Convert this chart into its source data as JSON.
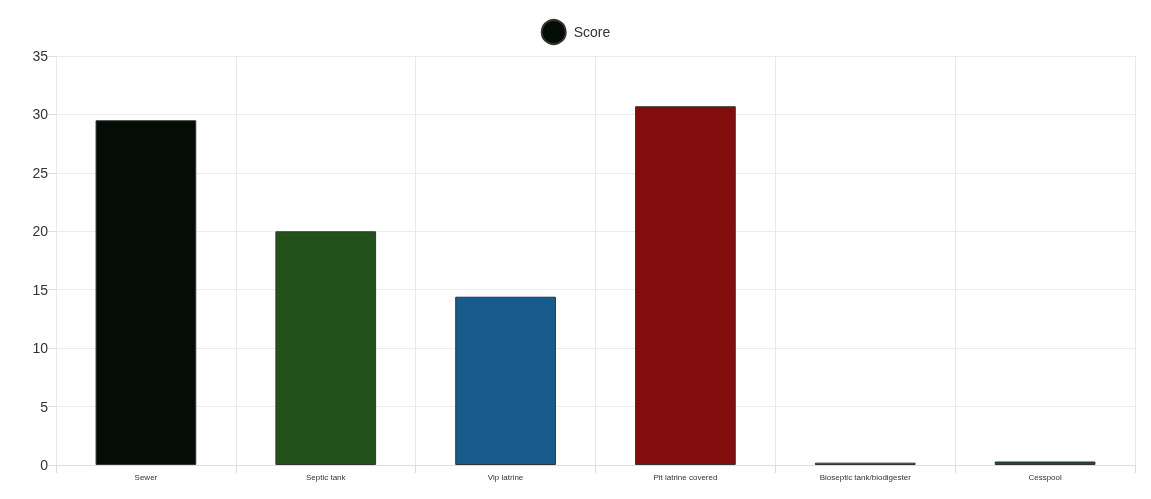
{
  "chart_data": {
    "type": "bar",
    "categories": [
      "Sewer",
      "Septic tank",
      "Vip latrine",
      "Pit latrine covered",
      "Bioseptic tank/biodigester",
      "Cesspool"
    ],
    "series": [
      {
        "name": "Score",
        "color": "#030d05",
        "colors": [
          "#030d05",
          "#225119",
          "#185c8c",
          "#830d0d",
          "#666666",
          "#1d4a37"
        ],
        "values": [
          29.5,
          20,
          14.4,
          30.7,
          0.2,
          0.3
        ]
      }
    ],
    "ylim": [
      0,
      35
    ],
    "yticks": [
      0,
      5,
      10,
      15,
      20,
      25,
      30,
      35
    ],
    "grid": true,
    "legend": "top"
  }
}
